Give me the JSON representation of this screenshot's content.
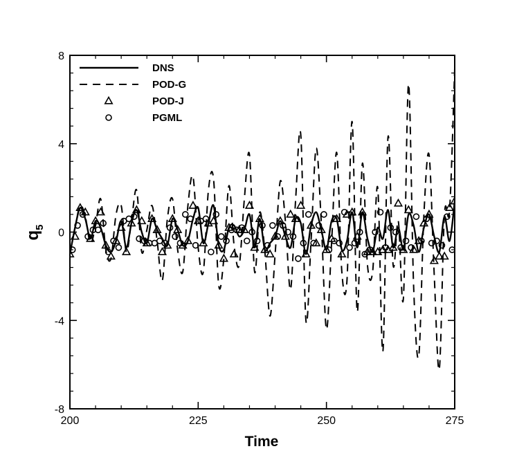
{
  "chart_data": {
    "type": "line",
    "title": "",
    "xlabel": "Time",
    "ylabel": "q",
    "ylabel_subscript": "5",
    "xlim": [
      200,
      275
    ],
    "ylim": [
      -8,
      8
    ],
    "x_ticks": [
      200,
      225,
      250,
      275
    ],
    "y_ticks": [
      -8,
      -4,
      0,
      4,
      8
    ],
    "grid": false,
    "legend_position": "top-left",
    "legend": [
      {
        "label": "DNS",
        "style": "solid-line"
      },
      {
        "label": "POD-G",
        "style": "dashed-line"
      },
      {
        "label": "POD-J",
        "style": "triangle-marker"
      },
      {
        "label": "PGML",
        "style": "circle-marker"
      }
    ],
    "series": [
      {
        "name": "DNS",
        "style": "solid",
        "x": [
          200,
          201,
          202,
          203,
          204,
          205,
          206,
          207,
          208,
          209,
          210,
          211,
          212,
          213,
          214,
          215,
          216,
          217,
          218,
          219,
          220,
          221,
          222,
          223,
          224,
          225,
          226,
          227,
          228,
          229,
          230,
          231,
          232,
          233,
          234,
          235,
          236,
          237,
          238,
          239,
          240,
          241,
          242,
          243,
          244,
          245,
          246,
          247,
          248,
          249,
          250,
          251,
          252,
          253,
          254,
          255,
          256,
          257,
          258,
          259,
          260,
          261,
          262,
          263,
          264,
          265,
          266,
          267,
          268,
          269,
          270,
          271,
          272,
          273,
          274,
          275
        ],
        "y": [
          -1.0,
          0.2,
          1.1,
          0.6,
          -0.3,
          0.5,
          0.2,
          -0.6,
          -0.9,
          -0.4,
          0.5,
          -0.7,
          0.4,
          1.0,
          0.0,
          -0.5,
          0.6,
          0.1,
          -0.3,
          -0.6,
          0.6,
          0.1,
          -0.6,
          -0.4,
          0.6,
          1.1,
          -0.5,
          0.4,
          1.2,
          -0.6,
          -0.8,
          0.2,
          0.3,
          -0.2,
          0.1,
          0.8,
          -0.7,
          0.6,
          -0.8,
          -0.5,
          -0.2,
          0.5,
          -0.2,
          -0.7,
          0.6,
          0.4,
          -1.0,
          0.3,
          0.9,
          0.1,
          -0.8,
          0.5,
          0.6,
          -0.8,
          -0.4,
          0.9,
          -0.7,
          0.9,
          -0.3,
          -0.9,
          0.2,
          -0.3,
          1.0,
          -0.7,
          0.2,
          -0.8,
          0.8,
          0.3,
          -0.9,
          0.2,
          0.8,
          -0.2,
          -0.9,
          0.7,
          -0.4,
          1.4
        ]
      },
      {
        "name": "POD-G",
        "style": "dashed",
        "x": [
          200,
          201,
          202,
          203,
          204,
          205,
          206,
          207,
          208,
          209,
          210,
          211,
          212,
          213,
          214,
          215,
          216,
          217,
          218,
          219,
          220,
          221,
          222,
          223,
          224,
          225,
          226,
          227,
          228,
          229,
          230,
          231,
          232,
          233,
          234,
          235,
          236,
          237,
          238,
          239,
          240,
          241,
          242,
          243,
          244,
          245,
          246,
          247,
          248,
          249,
          250,
          251,
          252,
          253,
          254,
          255,
          256,
          257,
          258,
          259,
          260,
          261,
          262,
          263,
          264,
          265,
          266,
          267,
          268,
          269,
          270,
          271,
          272,
          273,
          274,
          275
        ],
        "y": [
          -1.0,
          0.2,
          1.2,
          0.7,
          -0.5,
          0.3,
          1.5,
          -0.8,
          -1.2,
          0.8,
          1.2,
          -0.9,
          0.5,
          1.9,
          -0.9,
          0.1,
          1.2,
          -0.4,
          -2.2,
          0.6,
          1.5,
          -0.8,
          -1.8,
          1.2,
          2.5,
          -0.7,
          -1.8,
          1.9,
          2.4,
          -2.4,
          -1.2,
          2.1,
          -0.6,
          -1.5,
          1.5,
          3.5,
          -1.8,
          0.9,
          -0.9,
          -3.8,
          -1.0,
          2.3,
          0.5,
          -2.6,
          1.5,
          4.4,
          -4.0,
          -0.4,
          3.8,
          0.4,
          -4.4,
          -0.5,
          3.6,
          -1.8,
          -2.2,
          5.0,
          -3.6,
          3.1,
          -1.5,
          -1.8,
          2.0,
          -5.4,
          4.3,
          -1.5,
          0.5,
          -3.0,
          6.7,
          -2.5,
          -5.6,
          0.8,
          3.5,
          -1.9,
          -6.2,
          0.8,
          1.0,
          7.4
        ]
      },
      {
        "name": "POD-J",
        "style": "triangle",
        "x": [
          200.0,
          201.0,
          202.0,
          203.0,
          204.0,
          205.0,
          206.0,
          207.0,
          208.0,
          209.0,
          210.0,
          211.0,
          212.0,
          213.0,
          214.0,
          215.0,
          216.0,
          217.0,
          218.0,
          219.0,
          220.0,
          221.0,
          222.0,
          223.0,
          224.0,
          225.0,
          226.0,
          227.0,
          228.0,
          229.0,
          230.0,
          231.0,
          232.0,
          233.0,
          234.0,
          235.0,
          236.0,
          237.0,
          238.0,
          239.0,
          240.0,
          241.0,
          242.0,
          243.0,
          244.0,
          245.0,
          246.0,
          247.0,
          248.0,
          249.0,
          250.0,
          251.0,
          252.0,
          253.0,
          254.0,
          255.0,
          256.0,
          257.0,
          258.0,
          259.0,
          260.0,
          261.0,
          262.0,
          263.0,
          264.0,
          265.0,
          266.0,
          267.0,
          268.0,
          269.0,
          270.0,
          271.0,
          272.0,
          273.0,
          274.0,
          275.0
        ],
        "y": [
          -1.0,
          -0.2,
          1.1,
          0.9,
          -0.3,
          0.5,
          0.9,
          -0.6,
          -1.1,
          -0.4,
          0.2,
          -0.9,
          0.4,
          1.0,
          0.5,
          -0.5,
          0.6,
          0.1,
          -0.9,
          -0.6,
          0.6,
          0.1,
          -0.6,
          -0.4,
          1.2,
          0.5,
          -0.5,
          0.4,
          0.5,
          -0.6,
          -1.2,
          0.2,
          -1.0,
          0.1,
          0.1,
          1.2,
          -0.7,
          0.6,
          -0.8,
          -1.0,
          -0.2,
          0.5,
          -0.2,
          0.8,
          0.6,
          1.2,
          -1.0,
          0.3,
          -0.5,
          0.1,
          -0.8,
          -0.3,
          0.6,
          -1.0,
          0.8,
          0.9,
          -0.2,
          0.9,
          -0.9,
          -0.9,
          -0.9,
          -0.8,
          -0.8,
          -0.7,
          1.3,
          -0.8,
          1.0,
          -0.8,
          -0.4,
          0.4,
          0.8,
          -1.3,
          -1.1,
          -1.1,
          1.1,
          1.4
        ]
      },
      {
        "name": "PGML",
        "style": "circle",
        "x": [
          200.5,
          201.5,
          202.5,
          203.5,
          204.5,
          205.5,
          206.5,
          207.5,
          208.5,
          209.5,
          210.5,
          211.5,
          212.5,
          213.5,
          214.5,
          215.5,
          216.5,
          217.5,
          218.5,
          219.5,
          220.5,
          221.5,
          222.5,
          223.5,
          224.5,
          225.5,
          226.5,
          227.5,
          228.5,
          229.5,
          230.5,
          231.5,
          232.5,
          233.5,
          234.5,
          235.5,
          236.5,
          237.5,
          238.5,
          239.5,
          240.5,
          241.5,
          242.5,
          243.5,
          244.5,
          245.5,
          246.5,
          247.5,
          248.5,
          249.5,
          250.5,
          251.5,
          252.5,
          253.5,
          254.5,
          255.5,
          256.5,
          257.5,
          258.5,
          259.5,
          260.5,
          261.5,
          262.5,
          263.5,
          264.5,
          265.5,
          266.5,
          267.5,
          268.5,
          269.5,
          270.5,
          271.5,
          272.5,
          273.5,
          274.5
        ],
        "y": [
          -0.8,
          0.3,
          0.8,
          -0.2,
          0.1,
          0.1,
          0.4,
          -0.9,
          -0.4,
          -0.7,
          0.5,
          0.6,
          0.7,
          -0.3,
          -0.4,
          -0.5,
          -0.5,
          -0.4,
          -0.5,
          0.2,
          -0.2,
          -0.5,
          0.8,
          0.6,
          -0.6,
          0.5,
          0.6,
          -0.9,
          0.8,
          -0.2,
          -0.4,
          0.1,
          0.1,
          0.2,
          -0.4,
          0.0,
          -0.4,
          0.3,
          -0.6,
          0.3,
          -0.2,
          0.3,
          0.0,
          -0.2,
          -1.2,
          -0.5,
          0.8,
          -0.5,
          0.3,
          0.8,
          -0.8,
          -0.4,
          -0.5,
          0.9,
          -0.7,
          -0.5,
          0.0,
          -1.0,
          -0.8,
          0.0,
          0.9,
          -0.7,
          0.2,
          0.0,
          -0.7,
          -0.4,
          -0.7,
          0.7,
          -0.4,
          0.6,
          -0.5,
          -0.4,
          -0.6,
          0.7,
          -0.8
        ]
      }
    ]
  }
}
